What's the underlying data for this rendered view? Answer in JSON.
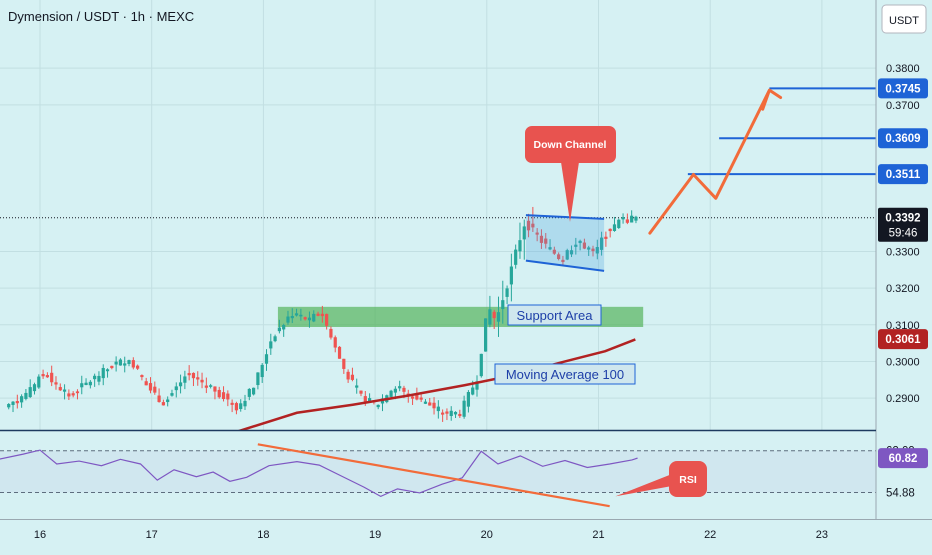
{
  "header": {
    "title": "Dymension / USDT · 1h · MEXC"
  },
  "currency_label": "USDT",
  "colors": {
    "background": "#d6f1f3",
    "up": "#26a69a",
    "down": "#ef5350",
    "ma": "#b22222",
    "rsi": "#7e57c2",
    "annotation": "#e8534f",
    "level": "#1e63d6"
  },
  "chart_data": {
    "type": "candlestick",
    "title": "Dymension / USDT · 1h · MEXC",
    "x_ticks": [
      "16",
      "17",
      "18",
      "19",
      "20",
      "21",
      "22",
      "23"
    ],
    "y_ticks": [
      "0.2900",
      "0.3000",
      "0.3100",
      "0.3200",
      "0.3300",
      "0.3700",
      "0.3800"
    ],
    "ylim": [
      0.2813,
      0.3986
    ],
    "price_levels": [
      {
        "label": "0.3745",
        "value": 0.3745
      },
      {
        "label": "0.3609",
        "value": 0.3609
      },
      {
        "label": "0.3511",
        "value": 0.3511
      }
    ],
    "current_price": {
      "label": "0.3392",
      "value": 0.3392,
      "countdown": "59:46"
    },
    "ma_price": {
      "label": "0.3061",
      "value": 0.3061
    },
    "annotations": {
      "down_channel": "Down Channel",
      "support_area": "Support Area",
      "moving_average": "Moving Average 100",
      "rsi": "RSI"
    },
    "support_zone": {
      "from_day": 18.13,
      "to_day": 21.4,
      "low": 0.3094,
      "high": 0.3149
    },
    "down_channel": {
      "from_day": 20.35,
      "to_day": 21.05,
      "upper": [
        0.3399,
        0.3389
      ],
      "lower": [
        0.3275,
        0.3247
      ]
    },
    "projection_path": [
      {
        "day": 21.46,
        "price": 0.335
      },
      {
        "day": 21.85,
        "price": 0.351
      },
      {
        "day": 22.05,
        "price": 0.3445
      },
      {
        "day": 22.53,
        "price": 0.374
      },
      {
        "day": 22.47,
        "price": 0.3688
      },
      {
        "day": 22.53,
        "price": 0.374
      },
      {
        "day": 22.63,
        "price": 0.372
      }
    ],
    "moving_average": [
      {
        "day": 17.78,
        "price": 0.281
      },
      {
        "day": 18.3,
        "price": 0.286
      },
      {
        "day": 18.8,
        "price": 0.2882
      },
      {
        "day": 19.3,
        "price": 0.2907
      },
      {
        "day": 19.8,
        "price": 0.2935
      },
      {
        "day": 20.2,
        "price": 0.296
      },
      {
        "day": 20.7,
        "price": 0.3
      },
      {
        "day": 21.06,
        "price": 0.3028
      },
      {
        "day": 21.33,
        "price": 0.306
      }
    ],
    "price_series": [
      {
        "day": 15.72,
        "price": 0.2875
      },
      {
        "day": 16.0,
        "price": 0.293
      },
      {
        "day": 16.05,
        "price": 0.2975
      },
      {
        "day": 16.3,
        "price": 0.2905
      },
      {
        "day": 16.5,
        "price": 0.295
      },
      {
        "day": 16.72,
        "price": 0.2995
      },
      {
        "day": 16.85,
        "price": 0.3005
      },
      {
        "day": 17.0,
        "price": 0.293
      },
      {
        "day": 17.15,
        "price": 0.2885
      },
      {
        "day": 17.35,
        "price": 0.2965
      },
      {
        "day": 17.55,
        "price": 0.2935
      },
      {
        "day": 17.8,
        "price": 0.2875
      },
      {
        "day": 17.95,
        "price": 0.293
      },
      {
        "day": 18.12,
        "price": 0.307
      },
      {
        "day": 18.3,
        "price": 0.313
      },
      {
        "day": 18.45,
        "price": 0.311
      },
      {
        "day": 18.55,
        "price": 0.314
      },
      {
        "day": 18.65,
        "price": 0.306
      },
      {
        "day": 18.75,
        "price": 0.2985
      },
      {
        "day": 18.9,
        "price": 0.2905
      },
      {
        "day": 19.05,
        "price": 0.288
      },
      {
        "day": 19.2,
        "price": 0.293
      },
      {
        "day": 19.4,
        "price": 0.2905
      },
      {
        "day": 19.65,
        "price": 0.2858
      },
      {
        "day": 19.8,
        "price": 0.286
      },
      {
        "day": 19.95,
        "price": 0.2955
      },
      {
        "day": 20.05,
        "price": 0.315
      },
      {
        "day": 20.12,
        "price": 0.311
      },
      {
        "day": 20.22,
        "price": 0.321
      },
      {
        "day": 20.3,
        "price": 0.33
      },
      {
        "day": 20.38,
        "price": 0.338
      },
      {
        "day": 20.55,
        "price": 0.332
      },
      {
        "day": 20.7,
        "price": 0.328
      },
      {
        "day": 20.85,
        "price": 0.333
      },
      {
        "day": 21.0,
        "price": 0.329
      },
      {
        "day": 21.1,
        "price": 0.335
      },
      {
        "day": 21.22,
        "price": 0.338
      },
      {
        "day": 21.35,
        "price": 0.3392
      }
    ],
    "rsi": {
      "levels": [
        {
          "label": "62.09",
          "value": 62.09
        },
        {
          "label": "54.88",
          "value": 54.88
        }
      ],
      "current": {
        "label": "60.82",
        "value": 60.82
      },
      "ylim": [
        51.5,
        65.5
      ],
      "series": [
        {
          "day": 15.6,
          "value": 60.5
        },
        {
          "day": 15.85,
          "value": 61.5
        },
        {
          "day": 16.0,
          "value": 62.2
        },
        {
          "day": 16.15,
          "value": 59.8
        },
        {
          "day": 16.35,
          "value": 60.3
        },
        {
          "day": 16.55,
          "value": 59.5
        },
        {
          "day": 16.72,
          "value": 60.6
        },
        {
          "day": 16.9,
          "value": 59.8
        },
        {
          "day": 17.05,
          "value": 57.0
        },
        {
          "day": 17.2,
          "value": 58.8
        },
        {
          "day": 17.4,
          "value": 57.6
        },
        {
          "day": 17.55,
          "value": 58.4
        },
        {
          "day": 17.7,
          "value": 56.8
        },
        {
          "day": 17.85,
          "value": 57.5
        },
        {
          "day": 18.05,
          "value": 59.5
        },
        {
          "day": 18.3,
          "value": 60.2
        },
        {
          "day": 18.5,
          "value": 59.6
        },
        {
          "day": 18.7,
          "value": 57.7
        },
        {
          "day": 18.9,
          "value": 55.8
        },
        {
          "day": 19.05,
          "value": 54.2
        },
        {
          "day": 19.2,
          "value": 55.5
        },
        {
          "day": 19.4,
          "value": 54.8
        },
        {
          "day": 19.6,
          "value": 56.3
        },
        {
          "day": 19.78,
          "value": 57.4
        },
        {
          "day": 19.95,
          "value": 62.0
        },
        {
          "day": 20.1,
          "value": 59.8
        },
        {
          "day": 20.3,
          "value": 61.2
        },
        {
          "day": 20.5,
          "value": 59.4
        },
        {
          "day": 20.7,
          "value": 60.4
        },
        {
          "day": 20.9,
          "value": 59.2
        },
        {
          "day": 21.1,
          "value": 59.8
        },
        {
          "day": 21.3,
          "value": 60.5
        },
        {
          "day": 21.35,
          "value": 60.82
        }
      ],
      "trendline": [
        {
          "day": 17.95,
          "value": 63.2
        },
        {
          "day": 21.1,
          "value": 52.5
        }
      ],
      "arrow": [
        {
          "day": 21.15,
          "value": 54.2
        },
        {
          "day": 21.65,
          "value": 57.2
        }
      ]
    }
  }
}
